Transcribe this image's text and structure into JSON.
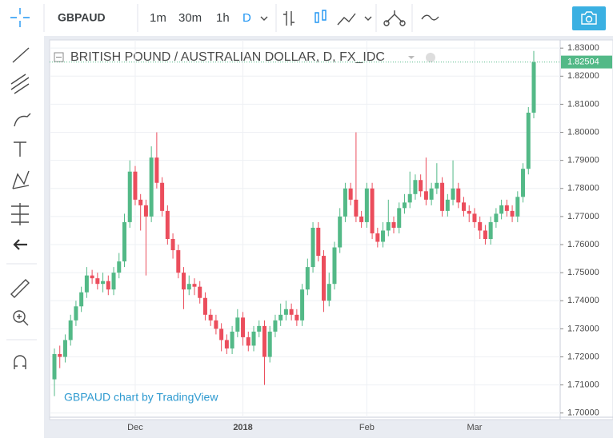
{
  "toolbar": {
    "symbol": "GBPAUD",
    "intervals": [
      "1m",
      "30m",
      "1h",
      "D"
    ]
  },
  "chart_data": {
    "type": "candlestick",
    "title": "BRITISH POUND / AUSTRALIAN DOLLAR, D, FX_IDC",
    "watermark": "GBPAUD chart by TradingView",
    "categories": [
      null,
      null,
      null,
      null,
      null,
      null,
      null,
      null,
      null,
      null,
      null,
      null,
      null,
      null,
      null,
      "Dec",
      null,
      null,
      null,
      null,
      null,
      null,
      null,
      null,
      null,
      null,
      null,
      null,
      null,
      null,
      null,
      null,
      null,
      null,
      null,
      "2018",
      null,
      null,
      null,
      null,
      null,
      null,
      null,
      null,
      null,
      null,
      null,
      null,
      null,
      null,
      null,
      null,
      null,
      null,
      null,
      null,
      null,
      null,
      "Feb",
      null,
      null,
      null,
      null,
      null,
      null,
      null,
      null,
      null,
      null,
      null,
      null,
      null,
      null,
      null,
      null,
      null,
      null,
      null,
      "Mar",
      null,
      null,
      null,
      null,
      null,
      null,
      null,
      null,
      null,
      null,
      null
    ],
    "open": [
      1.712,
      1.721,
      1.72,
      1.726,
      1.733,
      1.738,
      1.743,
      1.749,
      1.748,
      1.746,
      1.747,
      1.744,
      1.75,
      1.754,
      1.768,
      1.786,
      1.776,
      1.774,
      1.77,
      1.791,
      1.782,
      1.772,
      1.762,
      1.758,
      1.75,
      1.744,
      1.746,
      1.745,
      1.741,
      1.735,
      1.733,
      1.73,
      1.726,
      1.723,
      1.729,
      1.734,
      1.727,
      1.724,
      1.729,
      1.731,
      1.72,
      1.729,
      1.733,
      1.735,
      1.737,
      1.735,
      1.733,
      1.744,
      1.752,
      1.766,
      1.756,
      1.74,
      1.746,
      1.759,
      1.77,
      1.78,
      1.776,
      1.77,
      1.768,
      1.78,
      1.764,
      1.761,
      1.765,
      1.768,
      1.766,
      1.773,
      1.775,
      1.778,
      1.783,
      1.779,
      1.776,
      1.78,
      1.782,
      1.772,
      1.776,
      1.78,
      1.775,
      1.772,
      1.771,
      1.768,
      1.765,
      1.762,
      1.768,
      1.771,
      1.774,
      1.772,
      1.77,
      1.777,
      1.787,
      1.807
    ],
    "high": [
      1.723,
      1.724,
      1.728,
      1.735,
      1.74,
      1.745,
      1.752,
      1.751,
      1.75,
      1.75,
      1.749,
      1.752,
      1.757,
      1.771,
      1.79,
      1.788,
      1.778,
      1.776,
      1.795,
      1.8,
      1.784,
      1.774,
      1.764,
      1.76,
      1.752,
      1.749,
      1.748,
      1.747,
      1.743,
      1.737,
      1.735,
      1.732,
      1.728,
      1.731,
      1.737,
      1.736,
      1.729,
      1.731,
      1.733,
      1.733,
      1.731,
      1.735,
      1.739,
      1.74,
      1.739,
      1.737,
      1.746,
      1.755,
      1.768,
      1.768,
      1.758,
      1.75,
      1.761,
      1.773,
      1.782,
      1.782,
      1.8,
      1.772,
      1.782,
      1.782,
      1.766,
      1.768,
      1.776,
      1.77,
      1.775,
      1.778,
      1.786,
      1.785,
      1.785,
      1.791,
      1.782,
      1.789,
      1.784,
      1.778,
      1.79,
      1.782,
      1.777,
      1.774,
      1.773,
      1.77,
      1.767,
      1.77,
      1.773,
      1.776,
      1.776,
      1.774,
      1.779,
      1.789,
      1.809,
      1.829
    ],
    "low": [
      1.706,
      1.716,
      1.718,
      1.724,
      1.731,
      1.736,
      1.741,
      1.746,
      1.744,
      1.743,
      1.742,
      1.742,
      1.748,
      1.752,
      1.766,
      1.774,
      1.765,
      1.749,
      1.768,
      1.78,
      1.77,
      1.76,
      1.755,
      1.748,
      1.737,
      1.742,
      1.742,
      1.739,
      1.733,
      1.731,
      1.728,
      1.722,
      1.721,
      1.721,
      1.727,
      1.724,
      1.722,
      1.722,
      1.727,
      1.71,
      1.718,
      1.727,
      1.731,
      1.733,
      1.733,
      1.731,
      1.731,
      1.742,
      1.75,
      1.754,
      1.736,
      1.738,
      1.744,
      1.757,
      1.768,
      1.774,
      1.768,
      1.766,
      1.766,
      1.762,
      1.759,
      1.759,
      1.763,
      1.764,
      1.764,
      1.771,
      1.773,
      1.776,
      1.777,
      1.774,
      1.774,
      1.778,
      1.77,
      1.77,
      1.774,
      1.773,
      1.77,
      1.768,
      1.766,
      1.762,
      1.76,
      1.76,
      1.766,
      1.769,
      1.77,
      1.768,
      1.768,
      1.775,
      1.785,
      1.805
    ],
    "close": [
      1.721,
      1.72,
      1.726,
      1.733,
      1.738,
      1.743,
      1.749,
      1.748,
      1.746,
      1.747,
      1.744,
      1.75,
      1.754,
      1.768,
      1.786,
      1.776,
      1.774,
      1.77,
      1.791,
      1.782,
      1.772,
      1.762,
      1.758,
      1.75,
      1.744,
      1.746,
      1.745,
      1.741,
      1.735,
      1.733,
      1.73,
      1.726,
      1.723,
      1.729,
      1.734,
      1.727,
      1.724,
      1.729,
      1.731,
      1.72,
      1.729,
      1.733,
      1.735,
      1.737,
      1.735,
      1.733,
      1.744,
      1.752,
      1.766,
      1.756,
      1.74,
      1.746,
      1.759,
      1.77,
      1.78,
      1.776,
      1.77,
      1.768,
      1.78,
      1.764,
      1.761,
      1.765,
      1.768,
      1.766,
      1.773,
      1.775,
      1.778,
      1.783,
      1.779,
      1.776,
      1.78,
      1.782,
      1.772,
      1.776,
      1.78,
      1.775,
      1.772,
      1.771,
      1.768,
      1.765,
      1.762,
      1.768,
      1.771,
      1.774,
      1.772,
      1.77,
      1.777,
      1.787,
      1.807,
      1.825
    ],
    "up_color": "#53b987",
    "down_color": "#eb4d5c",
    "last_price": {
      "value": 1.82504,
      "label": "1.82504"
    },
    "ylim": [
      1.6985,
      1.8329
    ],
    "yticks": [
      {
        "value": 1.7,
        "label": "1.70000"
      },
      {
        "value": 1.71,
        "label": "1.71000"
      },
      {
        "value": 1.72,
        "label": "1.72000"
      },
      {
        "value": 1.73,
        "label": "1.73000"
      },
      {
        "value": 1.74,
        "label": "1.74000"
      },
      {
        "value": 1.75,
        "label": "1.75000"
      },
      {
        "value": 1.76,
        "label": "1.76000"
      },
      {
        "value": 1.77,
        "label": "1.77000"
      },
      {
        "value": 1.78,
        "label": "1.78000"
      },
      {
        "value": 1.79,
        "label": "1.79000"
      },
      {
        "value": 1.8,
        "label": "1.80000"
      },
      {
        "value": 1.81,
        "label": "1.81000"
      },
      {
        "value": 1.82,
        "label": "1.82000"
      },
      {
        "value": 1.83,
        "label": "1.83000"
      }
    ],
    "grid": true
  }
}
